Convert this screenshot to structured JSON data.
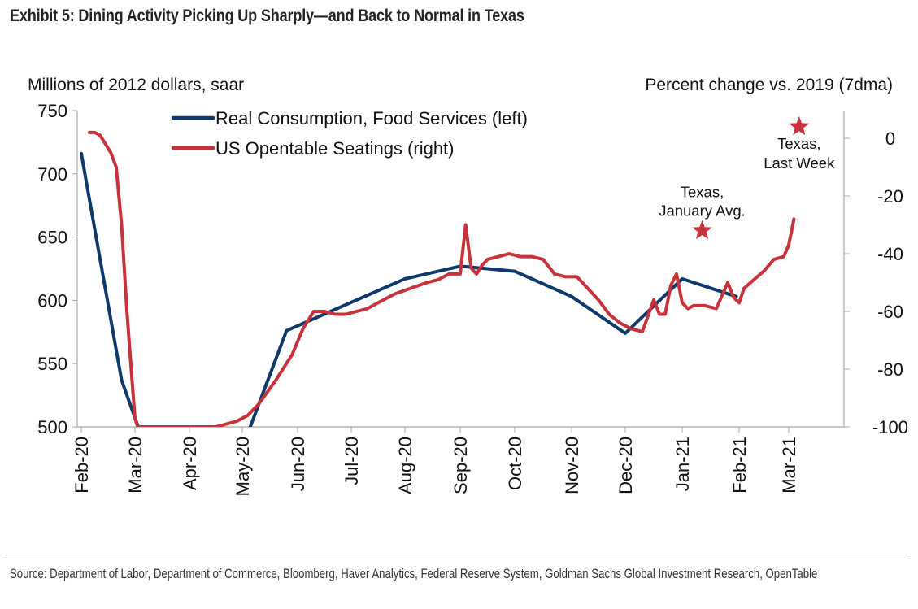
{
  "title": "Exhibit 5: Dining Activity Picking Up Sharply—and Back to Normal in Texas",
  "source": "Source: Department of Labor, Department of Commerce, Bloomberg, Haver Analytics, Federal Reserve System, Goldman Sachs Global Investment Research, OpenTable",
  "chart_data": {
    "type": "line",
    "title": "Exhibit 5: Dining Activity Picking Up Sharply—and Back to Normal in Texas",
    "xlabel": "",
    "ylabel": "Millions of 2012 dollars, saar",
    "y2label": "Percent change vs. 2019 (7dma)",
    "ylim": [
      500,
      750
    ],
    "y2lim": [
      -100,
      10
    ],
    "yticks": [
      "750",
      "700",
      "650",
      "600",
      "550",
      "500"
    ],
    "y2ticks": [
      "0",
      "-20",
      "-40",
      "-60",
      "-80",
      "-100"
    ],
    "xticks": [
      "Feb-20",
      "Mar-20",
      "Apr-20",
      "May-20",
      "Jun-20",
      "Jul-20",
      "Aug-20",
      "Sep-20",
      "Oct-20",
      "Nov-20",
      "Dec-20",
      "Jan-21",
      "Feb-21",
      "Mar-21"
    ],
    "x_units": "months since Feb-20",
    "grid": false,
    "legend": "top-center",
    "series": [
      {
        "name": "Real Consumption, Food Services (left)",
        "axis": "left",
        "color": "#0d3a6b",
        "x": [
          0,
          0.75,
          1.1,
          3.1,
          3.8,
          6,
          7,
          8,
          9,
          10,
          11,
          11.95
        ],
        "values": [
          716,
          537,
          495,
          495,
          576,
          617,
          627,
          623,
          603,
          574,
          617,
          603
        ]
      },
      {
        "name": "US Opentable Seatings (right)",
        "axis": "right",
        "color": "#c8323a",
        "x": [
          0.15,
          0.25,
          0.35,
          0.45,
          0.55,
          0.65,
          0.75,
          0.85,
          0.95,
          1.0,
          1.05,
          1.1,
          1.15,
          1.2,
          1.3,
          1.5,
          2.0,
          2.5,
          2.9,
          3.1,
          3.3,
          3.6,
          3.9,
          4.1,
          4.3,
          4.5,
          4.7,
          4.9,
          5.1,
          5.3,
          5.5,
          5.8,
          6.1,
          6.4,
          6.6,
          6.8,
          7.0,
          7.1,
          7.2,
          7.3,
          7.4,
          7.5,
          7.7,
          7.9,
          8.1,
          8.3,
          8.5,
          8.7,
          8.9,
          9.1,
          9.3,
          9.5,
          9.7,
          9.9,
          10.1,
          10.3,
          10.5,
          10.6,
          10.7,
          10.8,
          10.9,
          11.0,
          11.1,
          11.2,
          11.4,
          11.6,
          11.8,
          11.9,
          12.0,
          12.1,
          12.3,
          12.5,
          12.7,
          12.9,
          13.0,
          13.1
        ],
        "values": [
          2,
          2,
          1,
          -2,
          -5,
          -10,
          -30,
          -60,
          -85,
          -97,
          -100,
          -100,
          -100,
          -100,
          -100,
          -100,
          -100,
          -100,
          -98,
          -96,
          -92,
          -84,
          -75,
          -66,
          -60,
          -60,
          -61,
          -61,
          -60,
          -59,
          -57,
          -54,
          -52,
          -50,
          -49,
          -47,
          -47,
          -30,
          -45,
          -47,
          -44,
          -42,
          -41,
          -40,
          -41,
          -41,
          -42,
          -47,
          -48,
          -48,
          -52,
          -56,
          -61,
          -64,
          -66,
          -67,
          -56,
          -61,
          -61,
          -51,
          -47,
          -57,
          -59,
          -58,
          -58,
          -59,
          -50,
          -55,
          -57,
          -52,
          -49,
          -46,
          -42,
          -41,
          -37,
          -28
        ]
      }
    ],
    "annotations": [
      {
        "label": "Texas, January Avg.",
        "line1": "Texas,",
        "line2": "January Avg.",
        "axis": "right",
        "x": 11.35,
        "value": -32,
        "marker": "star"
      },
      {
        "label": "Texas, Last Week",
        "line1": "Texas,",
        "line2": "Last Week",
        "axis": "right",
        "x": 13.2,
        "value": 4,
        "marker": "star"
      }
    ]
  }
}
